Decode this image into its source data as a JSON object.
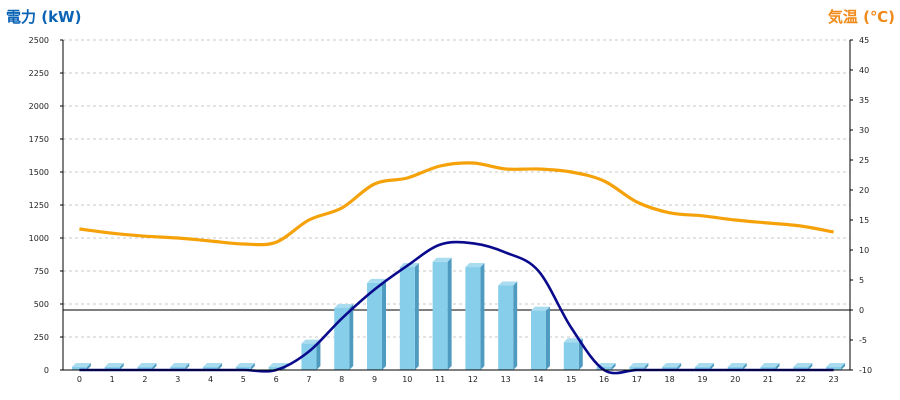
{
  "chart_data": {
    "type": "bar",
    "left_axis_title": "電力 (kW)",
    "right_axis_title": "気温 (℃)",
    "colors": {
      "left_title": "#0b63b6",
      "right_title": "#f08a1a",
      "bar_face": "#87ceeb",
      "bar_side": "#4f9bc0",
      "bar_top": "#aadcf0",
      "curve": "#0a0a8c",
      "temperature": "#f5a20a",
      "grid": "#c8c8c8",
      "axis": "#000000"
    },
    "categories": [
      "0",
      "1",
      "2",
      "3",
      "4",
      "5",
      "6",
      "7",
      "8",
      "9",
      "10",
      "11",
      "12",
      "13",
      "14",
      "15",
      "16",
      "17",
      "18",
      "19",
      "20",
      "21",
      "22",
      "23"
    ],
    "y_left": {
      "min": 0,
      "max": 2500,
      "ticks": [
        "0",
        "250",
        "500",
        "750",
        "1000",
        "1250",
        "1500",
        "1750",
        "2000",
        "2250",
        "2500"
      ]
    },
    "y_right": {
      "min": -10,
      "max": 45,
      "ticks": [
        "-10",
        "-5",
        "0",
        "5",
        "10",
        "15",
        "20",
        "25",
        "30",
        "35",
        "40",
        "45"
      ]
    },
    "zero_line_right": 0,
    "grid": true,
    "series": [
      {
        "kind": "bar",
        "axis": "left",
        "values": [
          0,
          0,
          0,
          0,
          0,
          0,
          10,
          200,
          470,
          660,
          780,
          820,
          780,
          640,
          450,
          210,
          20,
          0,
          0,
          0,
          0,
          0,
          0,
          0
        ]
      },
      {
        "kind": "smooth-line",
        "axis": "left",
        "values": [
          0,
          0,
          0,
          0,
          0,
          0,
          0,
          140,
          390,
          610,
          790,
          950,
          960,
          890,
          750,
          320,
          0,
          0,
          0,
          0,
          0,
          0,
          0,
          0
        ]
      },
      {
        "kind": "line",
        "axis": "right",
        "values": [
          13.5,
          12.8,
          12.3,
          12,
          11.5,
          11,
          11.3,
          15,
          17,
          21,
          22,
          24,
          24.5,
          23.5,
          23.5,
          23,
          21.5,
          18,
          16.2,
          15.7,
          15,
          14.5,
          14,
          13
        ]
      }
    ]
  }
}
